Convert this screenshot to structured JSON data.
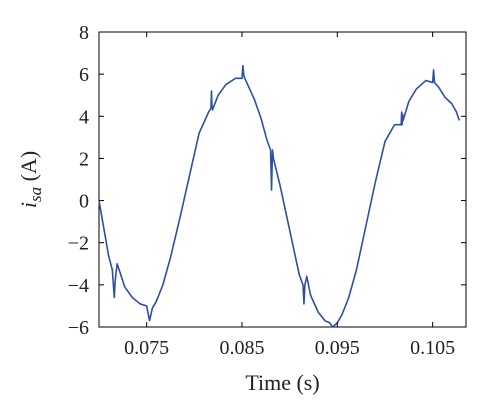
{
  "chart_data": {
    "type": "line",
    "xlabel": "Time (s)",
    "ylabel_main": "i",
    "ylabel_sub": "sa",
    "ylabel_unit": " (A)",
    "xlim": [
      0.07,
      0.1085
    ],
    "ylim": [
      -6,
      8
    ],
    "x_ticks": [
      0.075,
      0.085,
      0.095,
      0.105
    ],
    "x_tick_labels": [
      "0.075",
      "0.085",
      "0.095",
      "0.105"
    ],
    "y_ticks": [
      -6,
      -4,
      -2,
      0,
      2,
      4,
      6,
      8
    ],
    "y_tick_labels": [
      "−6",
      "−4",
      "−2",
      "0",
      "2",
      "4",
      "6",
      "8"
    ],
    "grid": false,
    "line_color": "#2e4fa3",
    "series": [
      {
        "x": [
          0.07,
          0.0705,
          0.071,
          0.0714,
          0.0716,
          0.0717,
          0.0719,
          0.0722,
          0.0727,
          0.0735,
          0.0743,
          0.075,
          0.0753,
          0.0756,
          0.076,
          0.0767,
          0.0775,
          0.0785,
          0.0795,
          0.0805,
          0.0815,
          0.08175,
          0.0818,
          0.08185,
          0.0819,
          0.0825,
          0.0833,
          0.0843,
          0.085,
          0.0851,
          0.0852,
          0.0856,
          0.0863,
          0.087,
          0.0876,
          0.088,
          0.0881,
          0.0882,
          0.0883,
          0.089,
          0.09,
          0.091,
          0.0914,
          0.0915,
          0.0916,
          0.0918,
          0.0922,
          0.093,
          0.0937,
          0.0942,
          0.0945,
          0.095,
          0.0955,
          0.0962,
          0.097,
          0.098,
          0.099,
          0.1,
          0.101,
          0.1017,
          0.10175,
          0.1018,
          0.10185,
          0.1019,
          0.1025,
          0.1033,
          0.1043,
          0.105,
          0.1051,
          0.1052,
          0.1056,
          0.1063,
          0.107,
          0.1075,
          0.1078
        ],
        "y": [
          0.0,
          -1.3,
          -2.6,
          -3.3,
          -4.6,
          -3.8,
          -3.0,
          -3.4,
          -4.1,
          -4.6,
          -4.9,
          -5.0,
          -5.7,
          -5.1,
          -4.8,
          -4.0,
          -2.7,
          -0.8,
          1.2,
          3.2,
          4.2,
          4.4,
          5.2,
          4.5,
          4.3,
          5.0,
          5.5,
          5.8,
          5.8,
          6.4,
          5.9,
          5.5,
          4.8,
          3.9,
          2.9,
          2.4,
          0.5,
          2.4,
          2.0,
          0.7,
          -1.4,
          -3.5,
          -4.0,
          -4.9,
          -4.0,
          -3.6,
          -4.5,
          -5.3,
          -5.7,
          -5.8,
          -6.0,
          -5.8,
          -5.4,
          -4.6,
          -3.3,
          -1.2,
          0.9,
          2.8,
          3.6,
          3.6,
          4.2,
          3.6,
          4.1,
          3.8,
          4.7,
          5.3,
          5.7,
          5.6,
          6.2,
          5.6,
          5.4,
          4.9,
          4.6,
          4.2,
          3.8
        ]
      }
    ]
  }
}
